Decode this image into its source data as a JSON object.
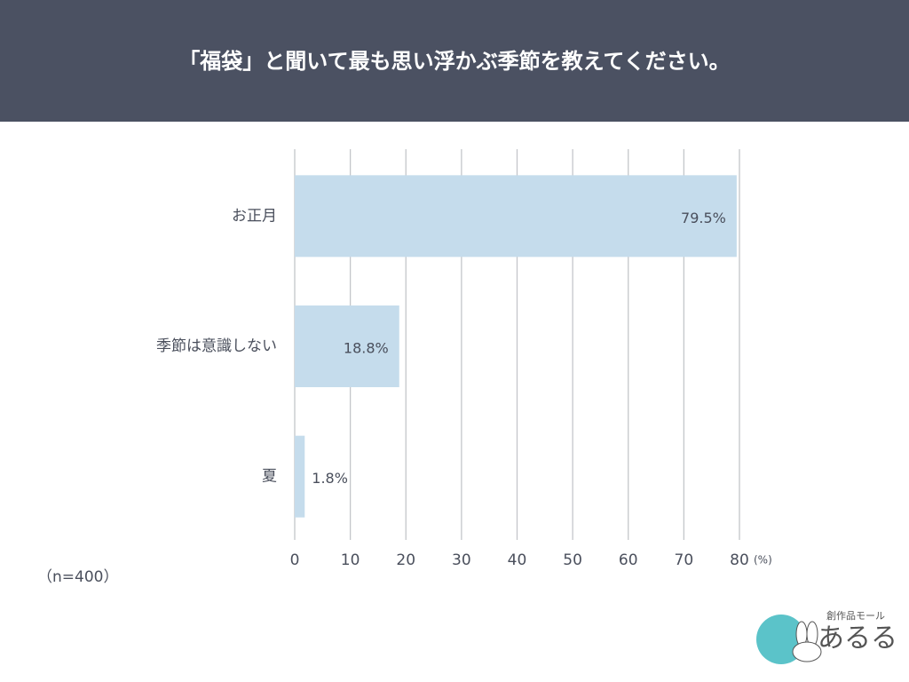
{
  "chart_data": {
    "type": "barh",
    "title": "「福袋」と聞いて最も思い浮かぶ季節を教えてください。",
    "categories": [
      "お正月",
      "季節は意識しない",
      "夏"
    ],
    "values": [
      79.5,
      18.8,
      1.8
    ],
    "value_labels": [
      "79.5%",
      "18.8%",
      "1.8%"
    ],
    "color": "#c5dcec",
    "xlim": [
      0,
      80
    ],
    "xticks": [
      0,
      10,
      20,
      30,
      40,
      50,
      60,
      70,
      80
    ],
    "x_unit": "(%)",
    "note": "（n=400）",
    "grid": true
  },
  "brand": {
    "tagline": "創作品モール",
    "name": "あるる"
  }
}
